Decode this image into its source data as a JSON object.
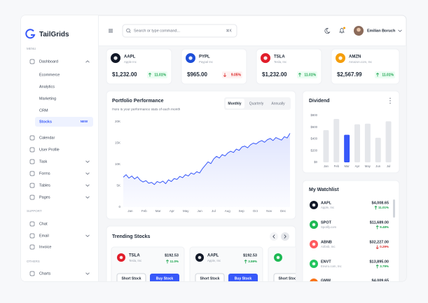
{
  "brand": "TailGrids",
  "sidebar": {
    "menu_label": "MENU",
    "dashboard": "Dashboard",
    "subitems": [
      "Ecommerce",
      "Analytics",
      "Marketing",
      "CRM",
      "Stocks"
    ],
    "badge": "NEW",
    "items": [
      "Calendar",
      "User Profile",
      "Task",
      "Forms",
      "Tables",
      "Pages"
    ],
    "support_label": "SUPPORT",
    "support_items": [
      "Chat",
      "Email",
      "Invoice"
    ],
    "others_label": "OTHERS",
    "others_items": [
      "Charts"
    ]
  },
  "header": {
    "search_placeholder": "Search or type command...",
    "shortcut": "⌘K",
    "user": "Emilian Boruch"
  },
  "stocks": [
    {
      "ticker": "AAPL",
      "name": "Apple Inc",
      "price": "$1,232.00",
      "change": "11.01%",
      "trend": "up",
      "color": "#111827"
    },
    {
      "ticker": "PYPL",
      "name": "Paypal Inc",
      "price": "$965.00",
      "change": "9.05%",
      "trend": "down",
      "color": "#1d4ed8"
    },
    {
      "ticker": "TSLA",
      "name": "Tesla, Inc",
      "price": "$1,232.00",
      "change": "11.01%",
      "trend": "up",
      "color": "#e11d2a"
    },
    {
      "ticker": "AMZN",
      "name": "Amazon.com, Inc",
      "price": "$2,567.99",
      "change": "11.01%",
      "trend": "up",
      "color": "#f59e0b"
    }
  ],
  "portfolio": {
    "title": "Portfolio Performance",
    "subtitle": "Here is your performance stats of each month",
    "tabs": [
      "Monthly",
      "Quarterly",
      "Annually"
    ],
    "chart": {
      "type": "line",
      "color": "#3758f9",
      "x_labels": [
        "Jan",
        "Feb",
        "Mar",
        "Apr",
        "May",
        "Jun",
        "Jul",
        "Aug",
        "Sep",
        "Oct",
        "Nov",
        "Dec"
      ],
      "values": [
        7000,
        7600,
        6800,
        7300,
        6600,
        7100,
        6300,
        5900,
        6200,
        5600,
        5800,
        5300,
        6000,
        5700,
        6100,
        5500,
        6400,
        6000,
        6700,
        6500,
        7200,
        6900,
        7600,
        7300,
        8000,
        7700,
        8300,
        8000,
        9000,
        9800,
        10600,
        10200,
        11300,
        11900,
        11500,
        12300,
        12000,
        12700,
        13100,
        12800,
        13600,
        13300,
        14100,
        14300,
        13900,
        14600,
        15000,
        14800,
        15300,
        15600,
        15200,
        15800,
        16100,
        15600,
        16300,
        16000,
        15700,
        16500,
        16200,
        17300
      ],
      "ylim": [
        0,
        20000
      ],
      "yticks": [
        0,
        {
          "value": 5000,
          "label": "5K"
        },
        {
          "value": 10000,
          "label": "10K"
        },
        {
          "value": 15000,
          "label": "15K"
        },
        {
          "value": 20000,
          "label": "20K"
        }
      ]
    }
  },
  "dividend": {
    "title": "Dividend",
    "chart": {
      "type": "bar",
      "categories": [
        "Jan",
        "Feb",
        "Mar",
        "Apr",
        "May",
        "Jun",
        "Jul"
      ],
      "values": [
        550,
        740,
        470,
        650,
        660,
        420,
        700
      ],
      "colors": [
        "#e5e7eb",
        "#e5e7eb",
        "#3758f9",
        "#e5e7eb",
        "#e5e7eb",
        "#e5e7eb",
        "#e5e7eb"
      ],
      "ylim": [
        0,
        800
      ],
      "yticks": [
        {
          "value": 0,
          "label": "$0"
        },
        {
          "value": 200,
          "label": "$200"
        },
        {
          "value": 400,
          "label": "$400"
        },
        {
          "value": 600,
          "label": "$600"
        },
        {
          "value": 800,
          "label": "$800"
        }
      ]
    }
  },
  "watchlist": {
    "title": "My Watchlist",
    "items": [
      {
        "ticker": "AAPL",
        "name": "Apple, Inc",
        "price": "$4,008.65",
        "change": "11.01%",
        "trend": "up",
        "color": "#111827"
      },
      {
        "ticker": "SPOT",
        "name": "Spotify.com",
        "price": "$11,689.00",
        "change": "9.48%",
        "trend": "up",
        "color": "#1db954"
      },
      {
        "ticker": "ABNB",
        "name": "Airbnb, Inc",
        "price": "$32,227.00",
        "change": "0.29%",
        "trend": "down",
        "color": "#ff5a5f"
      },
      {
        "ticker": "ENVT",
        "name": "Enviro.com, Inc",
        "price": "$13,895.00",
        "change": "3.79%",
        "trend": "up",
        "color": "#22c55e"
      },
      {
        "ticker": "GMW",
        "price": "$4,009.65",
        "color": "#f97316"
      }
    ]
  },
  "trending": {
    "title": "Trending Stocks",
    "short_label": "Short Stock",
    "buy_label": "Buy Stock",
    "items": [
      {
        "ticker": "TSLA",
        "name": "Tesla, Inc",
        "price": "$192.53",
        "change": "11.0%",
        "trend": "up",
        "color": "#e11d2a"
      },
      {
        "ticker": "AAPL",
        "name": "Apple, Inc",
        "price": "$192.53",
        "change": "3.59%",
        "trend": "up",
        "color": "#111827"
      },
      {
        "color": "#1db954"
      }
    ]
  }
}
